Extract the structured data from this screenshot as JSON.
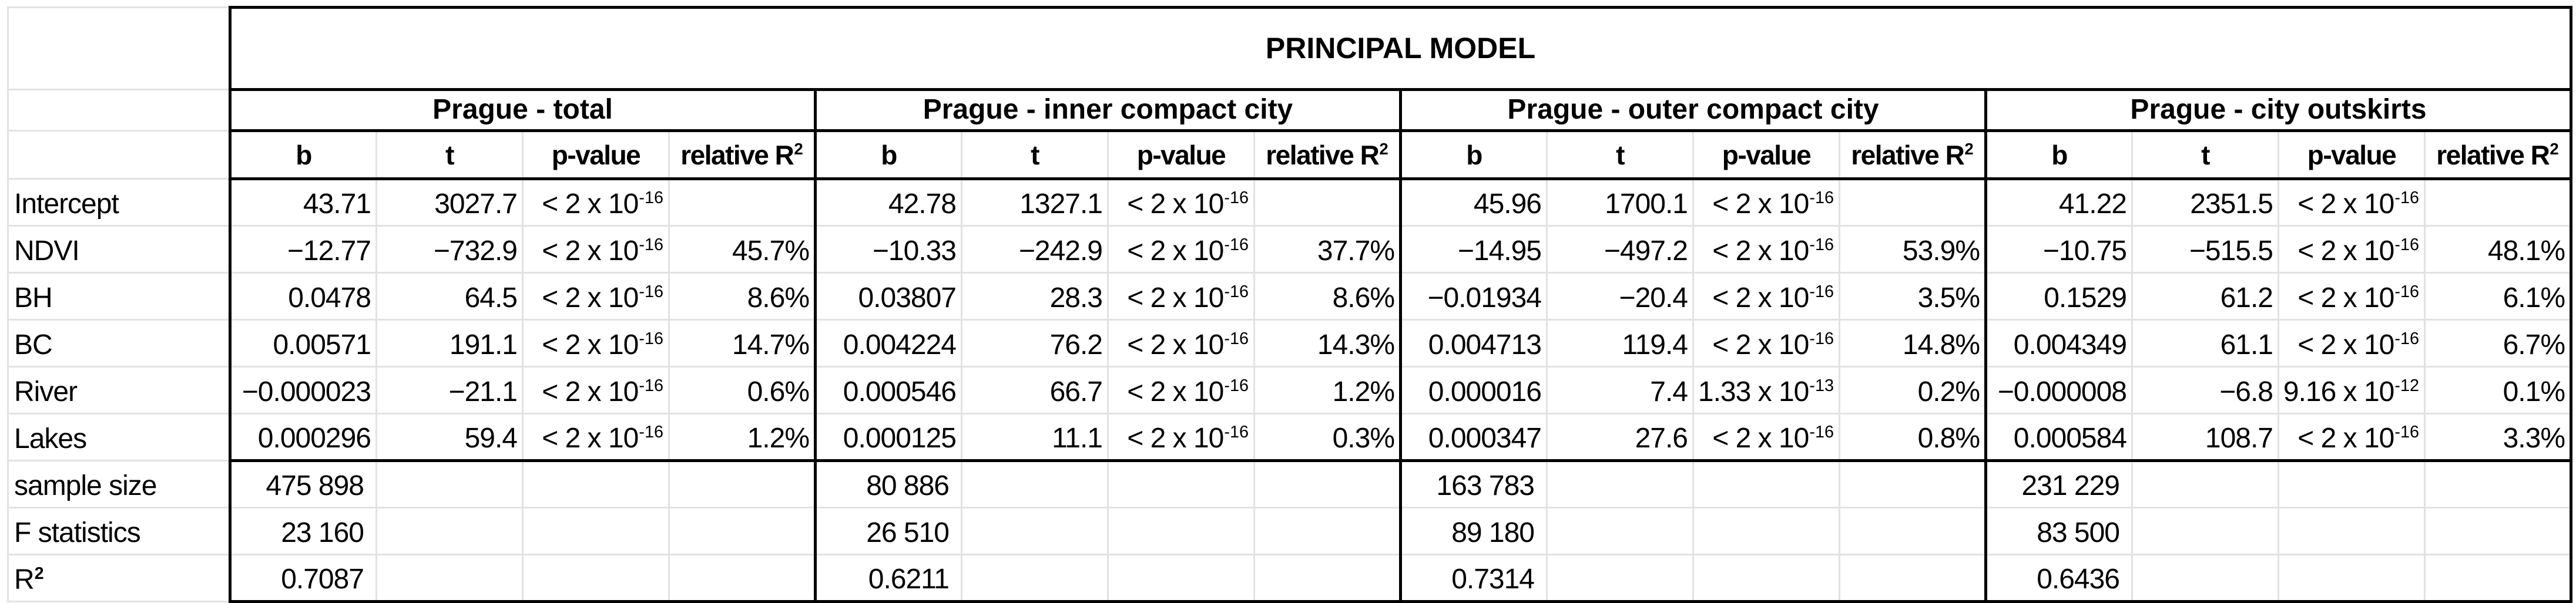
{
  "chart_data": {
    "type": "table",
    "title": "PRINCIPAL MODEL",
    "groups": [
      "Prague - total",
      "Prague - inner compact city",
      "Prague - outer compact city",
      "Prague - city outskirts"
    ],
    "sub_columns": [
      {
        "key": "b",
        "text": "b",
        "sup": ""
      },
      {
        "key": "t",
        "text": "t",
        "sup": ""
      },
      {
        "key": "p-value",
        "text": "p-value",
        "sup": ""
      },
      {
        "key": "relative-r2",
        "text": "relative R",
        "sup": "2"
      }
    ],
    "rows": [
      {
        "label": "Intercept",
        "cells": [
          {
            "b": "43.71",
            "t": "3027.7",
            "p": "< 2 x 10",
            "p_sup": "-16",
            "r2": ""
          },
          {
            "b": "42.78",
            "t": "1327.1",
            "p": "< 2 x 10",
            "p_sup": "-16",
            "r2": ""
          },
          {
            "b": "45.96",
            "t": "1700.1",
            "p": "< 2 x 10",
            "p_sup": "-16",
            "r2": ""
          },
          {
            "b": "41.22",
            "t": "2351.5",
            "p": "< 2 x 10",
            "p_sup": "-16",
            "r2": ""
          }
        ]
      },
      {
        "label": "NDVI",
        "cells": [
          {
            "b": "−12.77",
            "t": "−732.9",
            "p": "< 2 x 10",
            "p_sup": "-16",
            "r2": "45.7%"
          },
          {
            "b": "−10.33",
            "t": "−242.9",
            "p": "< 2 x 10",
            "p_sup": "-16",
            "r2": "37.7%"
          },
          {
            "b": "−14.95",
            "t": "−497.2",
            "p": "< 2 x 10",
            "p_sup": "-16",
            "r2": "53.9%"
          },
          {
            "b": "−10.75",
            "t": "−515.5",
            "p": "< 2 x 10",
            "p_sup": "-16",
            "r2": "48.1%"
          }
        ]
      },
      {
        "label": "BH",
        "cells": [
          {
            "b": "0.0478",
            "t": "64.5",
            "p": "< 2 x 10",
            "p_sup": "-16",
            "r2": "8.6%"
          },
          {
            "b": "0.03807",
            "t": "28.3",
            "p": "< 2 x 10",
            "p_sup": "-16",
            "r2": "8.6%"
          },
          {
            "b": "−0.01934",
            "t": "−20.4",
            "p": "< 2 x 10",
            "p_sup": "-16",
            "r2": "3.5%"
          },
          {
            "b": "0.1529",
            "t": "61.2",
            "p": "< 2 x 10",
            "p_sup": "-16",
            "r2": "6.1%"
          }
        ]
      },
      {
        "label": "BC",
        "cells": [
          {
            "b": "0.00571",
            "t": "191.1",
            "p": "< 2 x 10",
            "p_sup": "-16",
            "r2": "14.7%"
          },
          {
            "b": "0.004224",
            "t": "76.2",
            "p": "< 2 x 10",
            "p_sup": "-16",
            "r2": "14.3%"
          },
          {
            "b": "0.004713",
            "t": "119.4",
            "p": "< 2 x 10",
            "p_sup": "-16",
            "r2": "14.8%"
          },
          {
            "b": "0.004349",
            "t": "61.1",
            "p": "< 2 x 10",
            "p_sup": "-16",
            "r2": "6.7%"
          }
        ]
      },
      {
        "label": "River",
        "cells": [
          {
            "b": "−0.000023",
            "t": "−21.1",
            "p": "< 2 x 10",
            "p_sup": "-16",
            "r2": "0.6%"
          },
          {
            "b": "0.000546",
            "t": "66.7",
            "p": "< 2 x 10",
            "p_sup": "-16",
            "r2": "1.2%"
          },
          {
            "b": "0.000016",
            "t": "7.4",
            "p": "1.33 x 10",
            "p_sup": "-13",
            "r2": "0.2%"
          },
          {
            "b": "−0.000008",
            "t": "−6.8",
            "p": "9.16 x 10",
            "p_sup": "-12",
            "r2": "0.1%"
          }
        ]
      },
      {
        "label": "Lakes",
        "cells": [
          {
            "b": "0.000296",
            "t": "59.4",
            "p": "< 2 x 10",
            "p_sup": "-16",
            "r2": "1.2%"
          },
          {
            "b": "0.000125",
            "t": "11.1",
            "p": "< 2 x 10",
            "p_sup": "-16",
            "r2": "0.3%"
          },
          {
            "b": "0.000347",
            "t": "27.6",
            "p": "< 2 x 10",
            "p_sup": "-16",
            "r2": "0.8%"
          },
          {
            "b": "0.000584",
            "t": "108.7",
            "p": "< 2 x 10",
            "p_sup": "-16",
            "r2": "3.3%"
          }
        ]
      }
    ],
    "summary_rows": [
      {
        "label": "sample size",
        "label_sup": "",
        "values": [
          "475 898",
          "80 886",
          "163 783",
          "231 229"
        ]
      },
      {
        "label": "F statistics",
        "label_sup": "",
        "values": [
          "23 160",
          "26 510",
          "89 180",
          "83 500"
        ]
      },
      {
        "label": "R",
        "label_sup": "2",
        "values": [
          "0.7087",
          "0.6211",
          "0.7314",
          "0.6436"
        ]
      }
    ]
  },
  "styles": {
    "grid_line_color": "#e2e2e2",
    "border_color": "#000000",
    "background": "#ffffff",
    "text_color": "#000000"
  }
}
